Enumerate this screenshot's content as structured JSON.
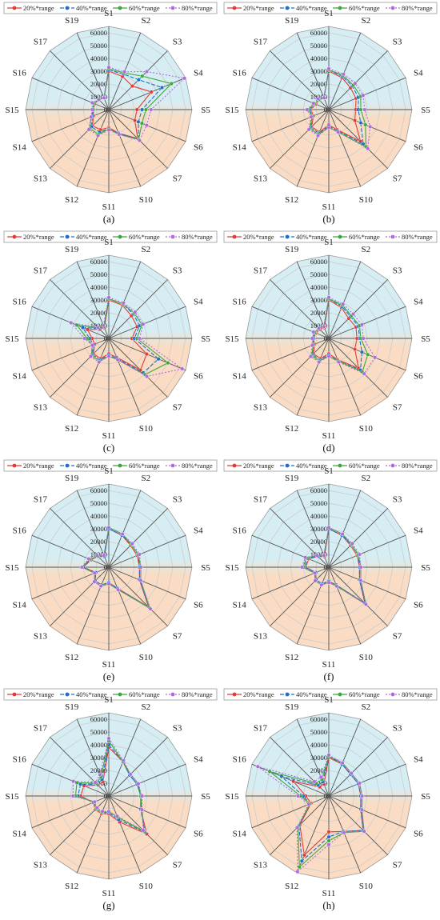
{
  "colors": {
    "series": [
      "#e53935",
      "#1e6fc8",
      "#3aa83a",
      "#b06ae0"
    ],
    "bg_top": "#d6eef3",
    "bg_bottom": "#f9dcc3",
    "spoke": "#555555",
    "ring": "#c9c9c9"
  },
  "chart_data": [
    {
      "type": "radar",
      "caption": "(a)",
      "categories": [
        "S1",
        "S2",
        "S3",
        "S4",
        "S5",
        "S6",
        "S7",
        "S10",
        "S11",
        "S12",
        "S13",
        "S14",
        "S15",
        "S16",
        "S17",
        "S19"
      ],
      "r_ticks": [
        "60000",
        "50000",
        "40000",
        "30000",
        "20000",
        "10000",
        "0"
      ],
      "rmax": 65000,
      "series": [
        {
          "name": "20%*range",
          "values": [
            30000,
            28000,
            26000,
            36000,
            22000,
            22000,
            32000,
            20000,
            14000,
            17000,
            18000,
            13000,
            12000,
            12000,
            11000,
            10000
          ]
        },
        {
          "name": "40%*range",
          "values": [
            31000,
            30000,
            33000,
            45000,
            26000,
            25000,
            33000,
            20000,
            15000,
            19000,
            19000,
            14000,
            12000,
            13000,
            11000,
            10000
          ]
        },
        {
          "name": "60%*range",
          "values": [
            32000,
            31000,
            37000,
            53000,
            29000,
            28000,
            33000,
            21000,
            15000,
            21000,
            21000,
            15000,
            12000,
            13000,
            11000,
            10000
          ]
        },
        {
          "name": "80%*range",
          "values": [
            33000,
            32000,
            42000,
            64000,
            33000,
            32000,
            34000,
            21000,
            16000,
            22000,
            22000,
            15000,
            13000,
            14000,
            11000,
            10000
          ]
        }
      ]
    },
    {
      "type": "radar",
      "caption": "(b)",
      "categories": [
        "S1",
        "S2",
        "S3",
        "S4",
        "S5",
        "S6",
        "S7",
        "S10",
        "S11",
        "S12",
        "S13",
        "S14",
        "S15",
        "S16",
        "S17",
        "S19"
      ],
      "r_ticks": [
        "60000",
        "50000",
        "40000",
        "30000",
        "20000",
        "10000",
        "0"
      ],
      "rmax": 65000,
      "series": [
        {
          "name": "20%*range",
          "values": [
            30000,
            27000,
            24000,
            23000,
            21000,
            22000,
            35000,
            17000,
            12000,
            19000,
            19000,
            13000,
            14000,
            11000,
            11000,
            10000
          ]
        },
        {
          "name": "40%*range",
          "values": [
            31000,
            28000,
            26000,
            25000,
            23000,
            27000,
            38000,
            18000,
            13000,
            20000,
            20000,
            14000,
            15000,
            12000,
            11000,
            10000
          ]
        },
        {
          "name": "60%*range",
          "values": [
            31000,
            29000,
            27000,
            27000,
            25000,
            31000,
            41000,
            19000,
            14000,
            21000,
            21000,
            14000,
            16000,
            12000,
            11000,
            10000
          ]
        },
        {
          "name": "80%*range",
          "values": [
            32000,
            30000,
            29000,
            29000,
            28000,
            35000,
            43000,
            19000,
            14000,
            22000,
            22000,
            15000,
            17000,
            13000,
            12000,
            10000
          ]
        }
      ]
    },
    {
      "type": "radar",
      "caption": "(c)",
      "categories": [
        "S1",
        "S2",
        "S3",
        "S4",
        "S5",
        "S6",
        "S7",
        "S10",
        "S11",
        "S12",
        "S13",
        "S14",
        "S15",
        "S16",
        "S17",
        "S19"
      ],
      "r_ticks": [
        "60000",
        "50000",
        "40000",
        "30000",
        "20000",
        "10000",
        "0"
      ],
      "rmax": 65000,
      "series": [
        {
          "name": "20%*range",
          "values": [
            30000,
            28000,
            25000,
            24000,
            18000,
            32000,
            35000,
            16000,
            12000,
            17000,
            17000,
            12000,
            13000,
            18000,
            10000,
            9000
          ]
        },
        {
          "name": "40%*range",
          "values": [
            31000,
            29000,
            27000,
            26000,
            20000,
            42000,
            38000,
            17000,
            13000,
            18000,
            18000,
            13000,
            15000,
            22000,
            11000,
            10000
          ]
        },
        {
          "name": "60%*range",
          "values": [
            31000,
            29000,
            28000,
            28000,
            22000,
            50000,
            40000,
            18000,
            14000,
            19000,
            19000,
            14000,
            17000,
            27000,
            12000,
            10000
          ]
        },
        {
          "name": "80%*range",
          "values": [
            32000,
            30000,
            29000,
            29000,
            24000,
            62000,
            42000,
            18000,
            14000,
            20000,
            20000,
            14000,
            19000,
            32000,
            12000,
            11000
          ]
        }
      ]
    },
    {
      "type": "radar",
      "caption": "(d)",
      "categories": [
        "S1",
        "S2",
        "S3",
        "S4",
        "S5",
        "S6",
        "S7",
        "S10",
        "S11",
        "S12",
        "S13",
        "S14",
        "S15",
        "S16",
        "S17",
        "S19"
      ],
      "r_ticks": [
        "60000",
        "50000",
        "40000",
        "30000",
        "20000",
        "10000",
        "0"
      ],
      "rmax": 65000,
      "series": [
        {
          "name": "20%*range",
          "values": [
            30000,
            26000,
            22000,
            23000,
            22000,
            22000,
            33000,
            18000,
            12000,
            17000,
            17000,
            12000,
            12000,
            11000,
            10000,
            9000
          ]
        },
        {
          "name": "40%*range",
          "values": [
            31000,
            27000,
            24000,
            25000,
            24000,
            28000,
            35000,
            19000,
            13000,
            18000,
            18000,
            13000,
            12000,
            12000,
            11000,
            10000
          ]
        },
        {
          "name": "60%*range",
          "values": [
            31000,
            28000,
            25000,
            26000,
            25000,
            33000,
            37000,
            19000,
            14000,
            19000,
            19000,
            13000,
            13000,
            12000,
            11000,
            10000
          ]
        },
        {
          "name": "80%*range",
          "values": [
            32000,
            29000,
            27000,
            28000,
            27000,
            39000,
            39000,
            20000,
            14000,
            20000,
            20000,
            14000,
            13000,
            13000,
            11000,
            10000
          ]
        }
      ]
    },
    {
      "type": "radar",
      "caption": "(e)",
      "categories": [
        "S1",
        "S2",
        "S3",
        "S4",
        "S5",
        "S6",
        "S7",
        "S10",
        "S11",
        "S12",
        "S13",
        "S14",
        "S15",
        "S16",
        "S17",
        "S19"
      ],
      "r_ticks": [
        "60000",
        "50000",
        "40000",
        "30000",
        "20000",
        "10000",
        "0"
      ],
      "rmax": 65000,
      "series": [
        {
          "name": "20%*range",
          "values": [
            30000,
            27000,
            24000,
            24000,
            24000,
            26000,
            44000,
            18000,
            12000,
            15000,
            15000,
            11000,
            20000,
            15000,
            12000,
            9000
          ]
        },
        {
          "name": "40%*range",
          "values": [
            30000,
            27000,
            25000,
            25000,
            24000,
            26000,
            45000,
            18000,
            12000,
            15000,
            15000,
            11000,
            20000,
            16000,
            12000,
            9000
          ]
        },
        {
          "name": "60%*range",
          "values": [
            31000,
            28000,
            25000,
            25000,
            25000,
            27000,
            45000,
            19000,
            13000,
            16000,
            16000,
            12000,
            21000,
            16000,
            12000,
            10000
          ]
        },
        {
          "name": "80%*range",
          "values": [
            31000,
            28000,
            26000,
            26000,
            25000,
            27000,
            46000,
            19000,
            13000,
            16000,
            16000,
            12000,
            21000,
            17000,
            13000,
            10000
          ]
        }
      ]
    },
    {
      "type": "radar",
      "caption": "(f)",
      "categories": [
        "S1",
        "S2",
        "S3",
        "S4",
        "S5",
        "S6",
        "S7",
        "S10",
        "S11",
        "S12",
        "S13",
        "S14",
        "S15",
        "S16",
        "S17",
        "S19"
      ],
      "r_ticks": [
        "60000",
        "50000",
        "40000",
        "30000",
        "20000",
        "10000",
        "0"
      ],
      "rmax": 65000,
      "series": [
        {
          "name": "20%*range",
          "values": [
            30000,
            27000,
            24000,
            24000,
            24000,
            26000,
            40000,
            15000,
            11000,
            14000,
            14000,
            11000,
            18000,
            17000,
            12000,
            9000
          ]
        },
        {
          "name": "40%*range",
          "values": [
            30000,
            27000,
            25000,
            25000,
            24000,
            26000,
            40000,
            15000,
            11000,
            14000,
            14000,
            11000,
            19000,
            18000,
            12000,
            10000
          ]
        },
        {
          "name": "60%*range",
          "values": [
            31000,
            28000,
            25000,
            25000,
            25000,
            27000,
            41000,
            16000,
            12000,
            15000,
            15000,
            12000,
            20000,
            19000,
            13000,
            10000
          ]
        },
        {
          "name": "80%*range",
          "values": [
            31000,
            28000,
            26000,
            26000,
            25000,
            27000,
            41000,
            16000,
            12000,
            15000,
            15000,
            12000,
            21000,
            20000,
            13000,
            10000
          ]
        }
      ]
    },
    {
      "type": "radar",
      "caption": "(g)",
      "categories": [
        "S1",
        "S2",
        "S3",
        "S4",
        "S5",
        "S6",
        "S7",
        "S10",
        "S11",
        "S12",
        "S13",
        "S14",
        "S15",
        "S16",
        "S17",
        "S19"
      ],
      "r_ticks": [
        "60000",
        "50000",
        "40000",
        "30000",
        "20000",
        "10000",
        "0"
      ],
      "rmax": 65000,
      "series": [
        {
          "name": "20%*range",
          "values": [
            38000,
            29000,
            23000,
            24000,
            25000,
            27000,
            42000,
            22000,
            14000,
            15000,
            15000,
            13000,
            22000,
            21000,
            12000,
            12000
          ]
        },
        {
          "name": "40%*range",
          "values": [
            40000,
            29000,
            23000,
            24000,
            25000,
            27000,
            40000,
            20000,
            13000,
            14000,
            14000,
            13000,
            24000,
            24000,
            13000,
            14000
          ]
        },
        {
          "name": "60%*range",
          "values": [
            43000,
            29000,
            24000,
            25000,
            25000,
            28000,
            39000,
            18000,
            12000,
            14000,
            14000,
            12000,
            26000,
            27000,
            14000,
            16000
          ]
        },
        {
          "name": "80%*range",
          "values": [
            45000,
            30000,
            24000,
            25000,
            26000,
            28000,
            38000,
            17000,
            12000,
            13000,
            13000,
            12000,
            28000,
            30000,
            15000,
            18000
          ]
        }
      ]
    },
    {
      "type": "radar",
      "caption": "(h)",
      "categories": [
        "S1",
        "S2",
        "S3",
        "S4",
        "S5",
        "S6",
        "S7",
        "S10",
        "S11",
        "S12",
        "S13",
        "S14",
        "S15",
        "S16",
        "S17",
        "S19"
      ],
      "r_ticks": [
        "60000",
        "50000",
        "40000",
        "30000",
        "20000",
        "10000",
        "0"
      ],
      "rmax": 65000,
      "series": [
        {
          "name": "20%*range",
          "values": [
            30000,
            27000,
            24000,
            25000,
            25000,
            27000,
            38000,
            30000,
            28000,
            50000,
            32000,
            15000,
            18000,
            30000,
            10000,
            10000
          ]
        },
        {
          "name": "40%*range",
          "values": [
            31000,
            27000,
            24000,
            25000,
            25000,
            27000,
            38000,
            30000,
            32000,
            55000,
            33000,
            16000,
            20000,
            40000,
            12000,
            12000
          ]
        },
        {
          "name": "60%*range",
          "values": [
            31000,
            28000,
            25000,
            26000,
            26000,
            28000,
            39000,
            31000,
            35000,
            60000,
            34000,
            16000,
            22000,
            50000,
            14000,
            14000
          ]
        },
        {
          "name": "80%*range",
          "values": [
            32000,
            28000,
            25000,
            26000,
            26000,
            28000,
            39000,
            31000,
            38000,
            64000,
            35000,
            17000,
            24000,
            60000,
            16000,
            16000
          ]
        }
      ]
    }
  ]
}
